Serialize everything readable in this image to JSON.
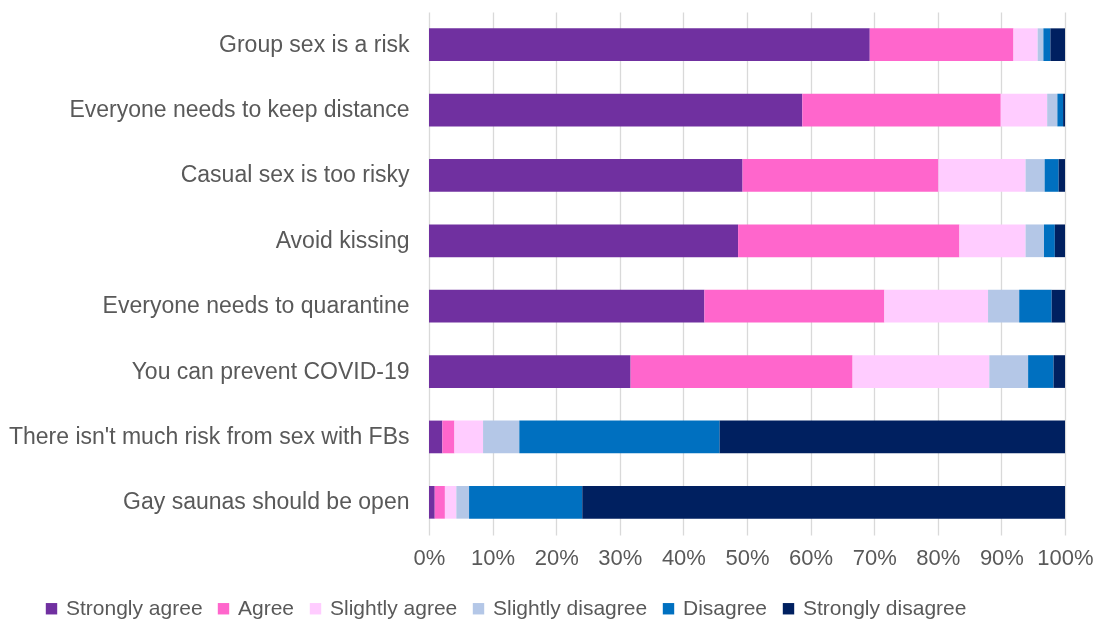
{
  "chart_data": {
    "type": "bar",
    "orientation": "horizontal",
    "stacked": true,
    "categories": [
      "Group sex is a risk",
      "Everyone needs to keep distance",
      "Casual sex is too risky",
      "Avoid kissing",
      "Everyone needs to quarantine",
      "You can prevent COVID-19",
      "There isn't much risk from sex with FBs",
      "Gay saunas should be open"
    ],
    "series": [
      {
        "name": "Strongly agree",
        "color": "#7030a0",
        "values": [
          69.3,
          58.7,
          49.3,
          48.6,
          43.3,
          31.7,
          2.1,
          0.9
        ]
      },
      {
        "name": "Agree",
        "color": "#ff66cc",
        "values": [
          22.6,
          31.2,
          30.8,
          34.8,
          28.3,
          34.9,
          1.9,
          1.6
        ]
      },
      {
        "name": "Slightly agree",
        "color": "#ffccff",
        "values": [
          3.8,
          7.3,
          13.7,
          10.4,
          16.3,
          21.5,
          4.5,
          1.8
        ]
      },
      {
        "name": "Slightly disagree",
        "color": "#b4c7e7",
        "values": [
          0.9,
          1.6,
          3.0,
          2.9,
          4.9,
          6.1,
          5.7,
          2.0
        ]
      },
      {
        "name": "Disagree",
        "color": "#0070c0",
        "values": [
          1.1,
          0.9,
          2.2,
          1.7,
          5.1,
          4.0,
          31.5,
          17.8
        ]
      },
      {
        "name": "Strongly disagree",
        "color": "#002060",
        "values": [
          2.3,
          0.3,
          1.0,
          1.6,
          2.1,
          1.8,
          54.3,
          75.9
        ]
      }
    ],
    "xlim": [
      0,
      100
    ],
    "xticks": [
      {
        "value": 0,
        "label": "0%"
      },
      {
        "value": 10,
        "label": "10%"
      },
      {
        "value": 20,
        "label": "20%"
      },
      {
        "value": 30,
        "label": "30%"
      },
      {
        "value": 40,
        "label": "40%"
      },
      {
        "value": 50,
        "label": "50%"
      },
      {
        "value": 60,
        "label": "60%"
      },
      {
        "value": 70,
        "label": "70%"
      },
      {
        "value": 80,
        "label": "80%"
      },
      {
        "value": 90,
        "label": "90%"
      },
      {
        "value": 100,
        "label": "100%"
      }
    ],
    "grid": "x",
    "legend": "bottom"
  }
}
